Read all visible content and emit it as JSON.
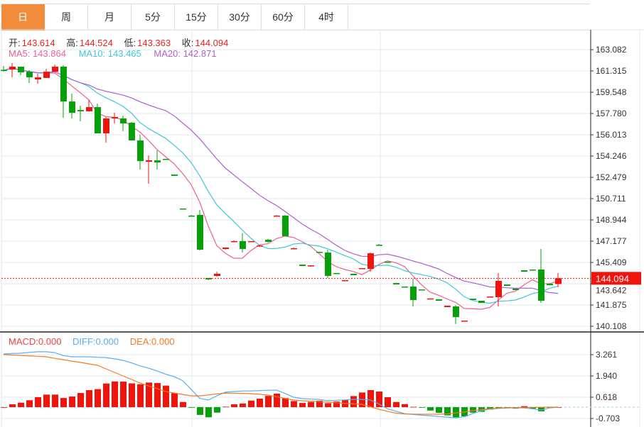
{
  "tabs": [
    {
      "label": "日",
      "active": true
    },
    {
      "label": "周",
      "active": false
    },
    {
      "label": "月",
      "active": false
    },
    {
      "label": "5分",
      "active": false
    },
    {
      "label": "15分",
      "active": false
    },
    {
      "label": "30分",
      "active": false
    },
    {
      "label": "60分",
      "active": false
    },
    {
      "label": "4时",
      "active": false
    }
  ],
  "ohlc_info": {
    "open_label": "开:",
    "open": "143.614",
    "high_label": "高:",
    "high": "144.524",
    "low_label": "低:",
    "low": "143.363",
    "close_label": "收:",
    "close": "144.094"
  },
  "ma_info": {
    "ma5": "MA5: 143.864",
    "ma10": "MA10: 143.465",
    "ma20": "MA20: 142.871"
  },
  "macd_info": {
    "macd": "MACD:0.000",
    "diff": "DIFF:0.000",
    "dea": "DEA:0.000"
  },
  "colors": {
    "up": "#f0150c",
    "down": "#06a10a",
    "ma5": "#ee5f8f",
    "ma10": "#3cc8dc",
    "ma20": "#b05ecc",
    "diff": "#5aaef0",
    "dea": "#f57a22",
    "active_tab": "#f28b3c"
  },
  "chart_data": [
    {
      "type": "candlestick",
      "title": "",
      "y_ticks": [
        "163.082",
        "161.315",
        "159.548",
        "157.780",
        "156.013",
        "154.246",
        "152.479",
        "150.711",
        "148.944",
        "147.177",
        "145.409",
        "143.642",
        "141.875",
        "140.108"
      ],
      "ylim": [
        140.108,
        163.082
      ],
      "last_price": "144.094",
      "grid": true,
      "ohlc": [
        [
          161.4,
          161.37,
          161.73,
          161.25
        ],
        [
          161.43,
          161.67,
          161.96,
          160.78
        ],
        [
          161.67,
          161.2,
          161.67,
          160.96
        ],
        [
          161.25,
          160.78,
          161.37,
          160.31
        ],
        [
          160.61,
          160.78,
          161.08,
          160.26
        ],
        [
          160.73,
          161.25,
          161.49,
          160.73
        ],
        [
          161.25,
          161.67,
          161.84,
          161.25
        ],
        [
          161.67,
          158.78,
          161.78,
          157.43
        ],
        [
          158.78,
          157.84,
          159.43,
          157.37
        ],
        [
          158.07,
          157.96,
          158.43,
          157.13
        ],
        [
          157.96,
          158.31,
          158.9,
          157.96
        ],
        [
          158.31,
          156.13,
          158.6,
          156.13
        ],
        [
          156.13,
          157.37,
          157.49,
          155.36
        ],
        [
          157.37,
          157.49,
          157.84,
          156.95
        ],
        [
          157.37,
          156.95,
          157.6,
          156.31
        ],
        [
          157.01,
          155.54,
          157.07,
          155.54
        ],
        [
          155.54,
          153.83,
          156.01,
          153.13
        ],
        [
          153.77,
          153.89,
          154.3,
          151.95
        ],
        [
          153.89,
          153.71,
          154.72,
          153.13
        ],
        [
          154.01,
          153.95,
          154.01,
          153.95
        ],
        [
          152.71,
          152.6,
          152.71,
          152.6
        ],
        [
          149.89,
          149.83,
          149.89,
          149.83
        ],
        [
          149.3,
          149.24,
          149.36,
          149.24
        ],
        [
          149.36,
          146.47,
          149.77,
          146.41
        ],
        [
          144.12,
          144.0,
          144.12,
          143.94
        ],
        [
          144.29,
          144.47,
          144.64,
          144.23
        ],
        [
          146.53,
          146.65,
          146.65,
          146.47
        ],
        [
          147.12,
          147.18,
          147.24,
          147.12
        ],
        [
          147.18,
          146.53,
          147.83,
          146.23
        ],
        [
          147.12,
          147.18,
          147.18,
          147.12
        ],
        [
          146.76,
          146.82,
          146.88,
          146.7
        ],
        [
          147.3,
          147.12,
          147.36,
          147.06
        ],
        [
          149.24,
          149.3,
          149.36,
          149.24
        ],
        [
          149.3,
          147.59,
          149.36,
          147.59
        ],
        [
          146.53,
          146.59,
          146.65,
          146.53
        ],
        [
          145.23,
          145.11,
          145.23,
          145.11
        ],
        [
          145.11,
          145.17,
          145.17,
          145.05
        ],
        [
          146.29,
          146.23,
          146.29,
          146.23
        ],
        [
          146.23,
          144.29,
          146.47,
          144.12
        ],
        [
          144.53,
          144.47,
          144.53,
          144.47
        ],
        [
          143.88,
          143.94,
          143.94,
          143.88
        ],
        [
          144.47,
          144.35,
          144.47,
          144.35
        ],
        [
          144.88,
          144.94,
          144.94,
          144.88
        ],
        [
          144.88,
          146.17,
          146.23,
          144.64
        ],
        [
          146.88,
          146.82,
          146.94,
          146.82
        ],
        [
          145.47,
          145.41,
          145.47,
          145.41
        ],
        [
          143.7,
          143.58,
          143.7,
          143.58
        ],
        [
          143.41,
          143.35,
          143.41,
          143.35
        ],
        [
          143.41,
          142.29,
          144.06,
          141.76
        ],
        [
          143.17,
          143.11,
          143.17,
          143.11
        ],
        [
          142.38,
          142.42,
          142.42,
          142.38
        ],
        [
          142.35,
          142.23,
          142.35,
          142.23
        ],
        [
          141.7,
          141.82,
          141.82,
          141.7
        ],
        [
          141.76,
          140.87,
          141.87,
          140.29
        ],
        [
          140.52,
          140.58,
          140.58,
          140.52
        ],
        [
          142.4,
          142.29,
          142.4,
          142.29
        ],
        [
          142.23,
          142.05,
          142.23,
          142.05
        ],
        [
          142.52,
          142.58,
          142.58,
          142.52
        ],
        [
          142.52,
          143.88,
          144.53,
          141.76
        ],
        [
          143.58,
          143.46,
          143.58,
          143.46
        ],
        [
          143.23,
          143.11,
          143.23,
          143.11
        ],
        [
          144.76,
          144.64,
          144.76,
          144.64
        ],
        [
          144.82,
          144.76,
          144.82,
          144.76
        ],
        [
          144.82,
          142.23,
          146.53,
          142.05
        ],
        [
          143.64,
          143.52,
          143.64,
          143.52
        ],
        [
          143.614,
          144.094,
          144.524,
          143.363
        ]
      ],
      "series": [
        {
          "name": "MA5",
          "period": 5
        },
        {
          "name": "MA10",
          "period": 10
        },
        {
          "name": "MA20",
          "period": 20
        }
      ]
    },
    {
      "type": "bar",
      "title": "MACD",
      "y_ticks": [
        "3.261",
        "1.940",
        "0.618",
        "-0.703"
      ],
      "ylim": [
        -0.8,
        4.1
      ],
      "macd": [
        0,
        0.18,
        0.28,
        0.43,
        0.62,
        0.78,
        0.78,
        0.57,
        0.66,
        0.88,
        1.06,
        1.12,
        1.47,
        1.6,
        1.59,
        1.48,
        1.42,
        1.53,
        1.5,
        1.34,
        0.87,
        0.32,
        -0.02,
        -0.48,
        -0.63,
        -0.34,
        0.03,
        0.18,
        0.23,
        0.41,
        0.53,
        0.7,
        0.84,
        0.57,
        0.38,
        0.26,
        0.32,
        0.4,
        0.25,
        0.35,
        0.44,
        0.69,
        0.91,
        1.06,
        0.97,
        0.62,
        0.32,
        0.19,
        0.02,
        -0.01,
        -0.21,
        -0.35,
        -0.51,
        -0.63,
        -0.57,
        -0.34,
        -0.29,
        -0.15,
        -0.07,
        -0.07,
        -0.09,
        0.06,
        -0.09,
        -0.26,
        -0.01,
        0
      ],
      "diff": [
        3.3,
        3.33,
        3.35,
        3.4,
        3.44,
        3.44,
        3.39,
        3.2,
        3.13,
        3.13,
        3.13,
        3.1,
        3.08,
        3.0,
        2.91,
        2.75,
        2.56,
        2.42,
        2.25,
        2.05,
        1.89,
        1.65,
        1.1,
        0.55,
        0.44,
        0.7,
        0.93,
        0.97,
        1.0,
        1.01,
        1.03,
        1.05,
        1.06,
        0.85,
        0.62,
        0.53,
        0.5,
        0.48,
        0.4,
        0.42,
        0.45,
        0.48,
        0.48,
        0.45,
        0.2,
        -0.1,
        -0.25,
        -0.4,
        -0.45,
        -0.5,
        -0.53,
        -0.58,
        -0.62,
        -0.66,
        -0.6,
        -0.4,
        -0.22,
        -0.12,
        -0.08,
        -0.05,
        -0.04,
        -0.05,
        -0.1,
        -0.18,
        -0.05,
        0
      ],
      "dea": [
        3.26,
        3.24,
        3.21,
        3.19,
        3.16,
        3.13,
        3.03,
        2.95,
        2.86,
        2.78,
        2.69,
        2.6,
        2.38,
        2.16,
        1.94,
        1.72,
        1.5,
        1.32,
        1.15,
        0.97,
        0.88,
        0.79,
        0.7,
        0.7,
        0.76,
        0.82,
        0.88,
        0.87,
        0.86,
        0.84,
        0.8,
        0.75,
        0.65,
        0.55,
        0.44,
        0.4,
        0.37,
        0.34,
        0.31,
        0.28,
        0.24,
        0.21,
        0.18,
        0.03,
        -0.13,
        -0.26,
        -0.37,
        -0.42,
        -0.43,
        -0.44,
        -0.44,
        -0.44,
        -0.42,
        -0.36,
        -0.3,
        -0.22,
        -0.15,
        -0.1,
        -0.06,
        -0.04,
        -0.03,
        -0.02,
        -0.01,
        -0.01,
        0,
        0
      ]
    }
  ]
}
